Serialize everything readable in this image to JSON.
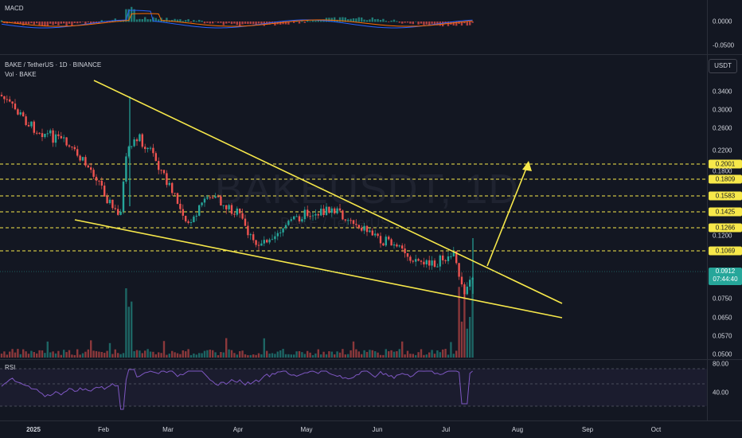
{
  "macd": {
    "label": "MACD",
    "ticks": [
      "0.0000",
      "-0.0500"
    ]
  },
  "main": {
    "symbol_line": "BAKE / TetherUS · 1D · BINANCE",
    "vol_line": "Vol · BAKE",
    "watermark": "BAKEUSDT, 1D",
    "watermark_sub": "BAKE / TetherUS",
    "currency_button": "USDT",
    "price_ticks": [
      "0.3400",
      "0.3000",
      "0.2600",
      "0.2200",
      "0.1200",
      "0.0750",
      "0.0650",
      "0.0570",
      "0.0500"
    ],
    "level_badges": [
      "0.2001",
      "0.1809",
      "0.1583",
      "0.1425",
      "0.1266",
      "0.1069"
    ],
    "hidden_tick": "0.1800",
    "current_price": "0.0912",
    "countdown": "07:44:40"
  },
  "rsi": {
    "label": "RSI",
    "ticks": [
      "80.00",
      "40.00"
    ]
  },
  "time_axis": [
    "2025",
    "Feb",
    "Mar",
    "Apr",
    "May",
    "Jun",
    "Jul",
    "Aug",
    "Sep",
    "Oct"
  ],
  "colors": {
    "background": "#131722",
    "up": "#26a69a",
    "down": "#ef5350",
    "trendline": "#f7e84a",
    "level": "#f7e84a",
    "rsi_line": "#7e57c2",
    "macd_line": "#2962ff",
    "signal_line": "#ff6d00"
  }
}
